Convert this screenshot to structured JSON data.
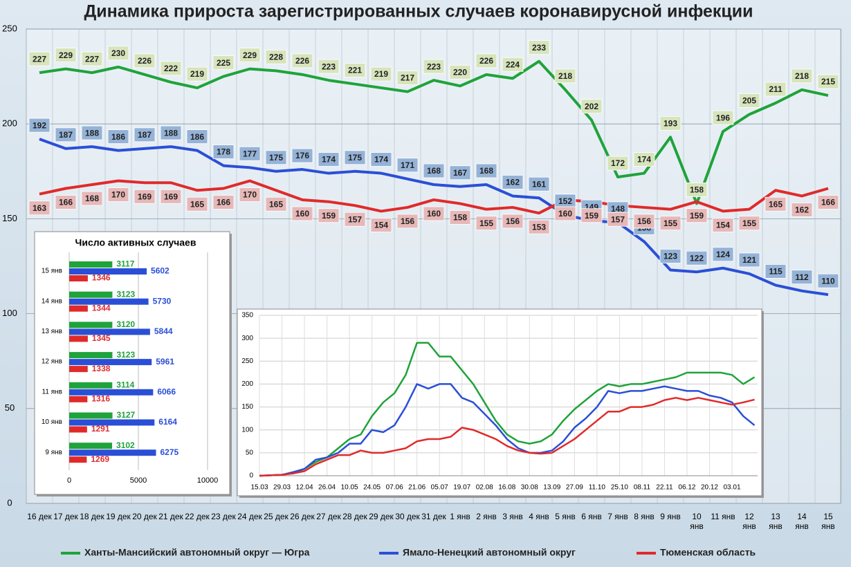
{
  "chart_data": [
    {
      "type": "line",
      "title": "Динамика прироста зарегистрированных случаев коронавирусной инфекции",
      "categories": [
        "16 дек",
        "17 дек",
        "18 дек",
        "19 дек",
        "20 дек",
        "21 дек",
        "22 дек",
        "23 дек",
        "24 дек",
        "25 дек",
        "26 дек",
        "27 дек",
        "28 дек",
        "29 дек",
        "30 дек",
        "31 дек",
        "1 янв",
        "2 янв",
        "3 янв",
        "4 янв",
        "5 янв",
        "6 янв",
        "7 янв",
        "8 янв",
        "9 янв",
        "10 янв",
        "11 янв",
        "12 янв",
        "13 янв",
        "14 янв",
        "15 янв"
      ],
      "series": [
        {
          "name": "Ханты-Мансийский автономный округ — Югра",
          "color": "#1fa33a",
          "label_fill": "#d7e4bc",
          "label_side": "above",
          "values": [
            227,
            229,
            227,
            230,
            226,
            222,
            219,
            225,
            229,
            228,
            226,
            223,
            221,
            219,
            217,
            223,
            220,
            226,
            224,
            233,
            218,
            202,
            172,
            174,
            193,
            158,
            196,
            205,
            211,
            218,
            215
          ]
        },
        {
          "name": "Ямало-Ненецкий автономный округ",
          "color": "#2a4fd6",
          "label_fill": "#95b3d7",
          "label_side": "above",
          "values": [
            192,
            187,
            188,
            186,
            187,
            188,
            186,
            178,
            177,
            175,
            176,
            174,
            175,
            174,
            171,
            168,
            167,
            168,
            162,
            161,
            152,
            149,
            148,
            138,
            123,
            122,
            124,
            121,
            115,
            112,
            110
          ]
        },
        {
          "name": "Тюменская область",
          "color": "#e02a2a",
          "label_fill": "#e6b8b7",
          "label_side": "below",
          "values": [
            163,
            166,
            168,
            170,
            169,
            169,
            165,
            166,
            170,
            165,
            160,
            159,
            157,
            154,
            156,
            160,
            158,
            155,
            156,
            153,
            160,
            159,
            157,
            156,
            155,
            159,
            154,
            155,
            165,
            162,
            166
          ]
        }
      ],
      "ylim": [
        0,
        250
      ],
      "yticks": [
        0,
        50,
        100,
        150,
        200,
        250
      ],
      "grid": true
    },
    {
      "type": "barh",
      "title": "Число активных случаев",
      "categories": [
        "15 янв",
        "14 янв",
        "13 янв",
        "12 янв",
        "11 янв",
        "10 янв",
        "9 янв"
      ],
      "series": [
        {
          "color": "#1fa33a",
          "values": [
            3117,
            3123,
            3120,
            3123,
            3114,
            3127,
            3102
          ]
        },
        {
          "color": "#2a4fd6",
          "values": [
            5602,
            5730,
            5844,
            5961,
            6066,
            6164,
            6275
          ]
        },
        {
          "color": "#e02a2a",
          "values": [
            1346,
            1344,
            1345,
            1338,
            1316,
            1291,
            1269
          ]
        }
      ],
      "xlim": [
        0,
        10000
      ],
      "xticks": [
        0,
        5000,
        10000
      ],
      "grid": true
    },
    {
      "type": "line",
      "x": [
        "15.03",
        null,
        "29.03",
        null,
        "12.04",
        null,
        "26.04",
        null,
        "10.05",
        null,
        "24.05",
        null,
        "07.06",
        null,
        "21.06",
        null,
        "05.07",
        null,
        "19.07",
        null,
        "02.08",
        null,
        "16.08",
        null,
        "30.08",
        null,
        "13.09",
        null,
        "27.09",
        null,
        "11.10",
        null,
        "25.10",
        null,
        "08.11",
        null,
        "22.11",
        null,
        "06.12",
        null,
        "20.12",
        null,
        "03.01",
        null,
        null
      ],
      "series": [
        {
          "color": "#1fa33a",
          "values": [
            0,
            1,
            2,
            5,
            15,
            30,
            40,
            60,
            80,
            90,
            130,
            160,
            180,
            220,
            290,
            290,
            260,
            260,
            230,
            200,
            160,
            120,
            90,
            75,
            70,
            75,
            90,
            120,
            145,
            165,
            185,
            200,
            195,
            200,
            200,
            205,
            210,
            215,
            225,
            225,
            225,
            225,
            220,
            200,
            215
          ]
        },
        {
          "color": "#2a4fd6",
          "values": [
            0,
            1,
            2,
            8,
            15,
            35,
            40,
            50,
            70,
            70,
            100,
            95,
            110,
            150,
            200,
            190,
            200,
            200,
            170,
            160,
            135,
            110,
            80,
            60,
            50,
            50,
            55,
            75,
            105,
            125,
            150,
            185,
            180,
            185,
            185,
            190,
            195,
            190,
            185,
            185,
            175,
            170,
            160,
            130,
            110
          ]
        },
        {
          "color": "#e02a2a",
          "values": [
            0,
            1,
            2,
            5,
            10,
            25,
            35,
            45,
            45,
            55,
            50,
            50,
            55,
            60,
            75,
            80,
            80,
            85,
            105,
            100,
            90,
            80,
            65,
            55,
            50,
            48,
            50,
            65,
            80,
            100,
            120,
            140,
            140,
            150,
            150,
            155,
            165,
            170,
            165,
            170,
            165,
            160,
            155,
            160,
            166
          ]
        }
      ],
      "ylim": [
        0,
        350
      ],
      "yticks": [
        0,
        50,
        100,
        150,
        200,
        250,
        300,
        350
      ],
      "grid": true
    }
  ]
}
